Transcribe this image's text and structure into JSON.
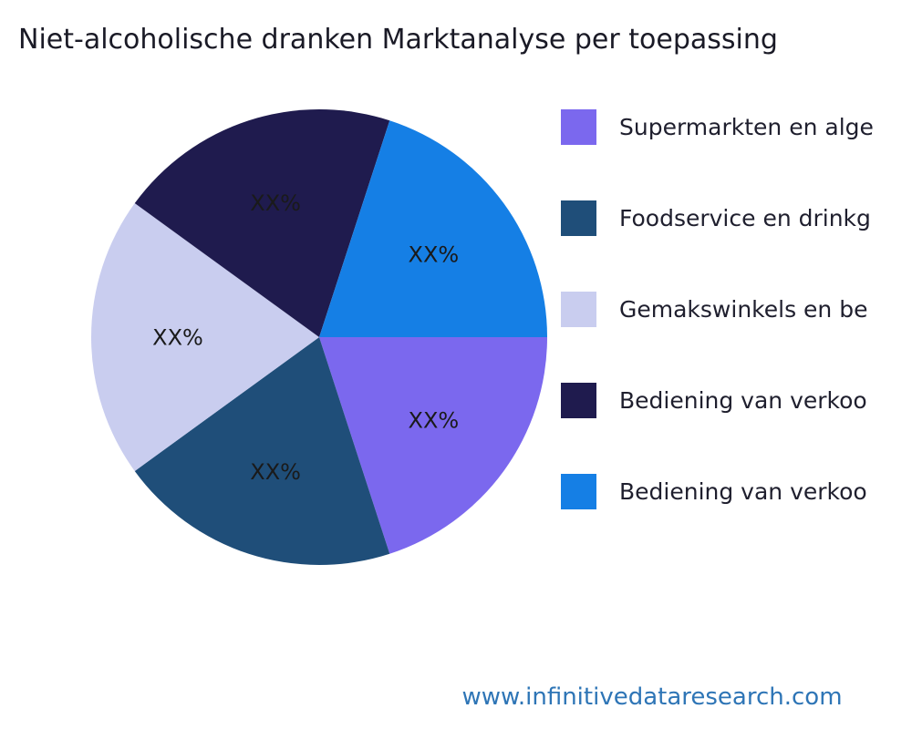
{
  "title": "Niet-alcoholische dranken Marktanalyse per toepassing",
  "footer": {
    "url_text": "www.infinitivedataresearch.com"
  },
  "chart_data": {
    "type": "pie",
    "title": "Niet-alcoholische dranken Marktanalyse per toepassing",
    "legend": [
      "Supermarkten en alge",
      "Foodservice en drinkg",
      "Gemakswinkels en be",
      "Bediening van verkoo",
      "Bediening van verkoo"
    ],
    "slice_labels": [
      "XX%",
      "XX%",
      "XX%",
      "XX%",
      "XX%"
    ],
    "values": [
      20,
      20,
      20,
      20,
      20
    ],
    "colors": [
      "#7b68ee",
      "#1f4e79",
      "#c9cdef",
      "#1f1b4e",
      "#157fe5"
    ],
    "legend_position": "right",
    "start_angle_deg": 0,
    "direction": "clockwise",
    "label_radius_ratio": 0.62
  }
}
